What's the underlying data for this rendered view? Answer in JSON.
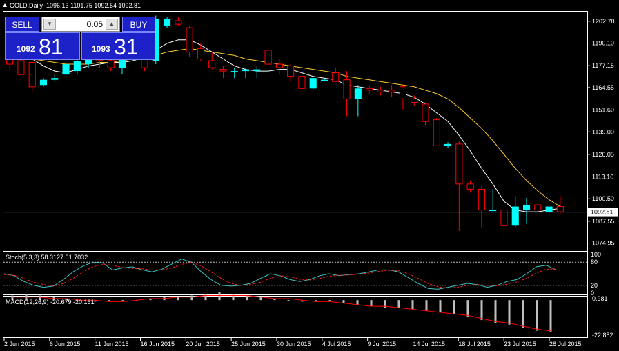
{
  "window": {
    "title": "GOLD,Daily",
    "ohlc": "1096.13 1101.75 1092.54 1092.81"
  },
  "trade_panel": {
    "sell_label": "SELL",
    "buy_label": "BUY",
    "lot_value": "0.05",
    "bid_small": "1092",
    "bid_big": "81",
    "ask_small": "1093",
    "ask_big": "31"
  },
  "indicators": {
    "stoch_label": "Stoch(5,3,3) 58.3127 61.7032",
    "macd_label": "MACD(12,26,9) -20.679 -20.161"
  },
  "colors": {
    "background": "#000000",
    "bull_candle": "#00ffff",
    "bear_candle": "#ff0000",
    "ma_fast": "#ffffff",
    "ma_slow": "#ffcc33",
    "bid_line": "#7f8fa6",
    "panel_blue": "#1c22c8",
    "stoch_main": "#40c0c0",
    "stoch_signal": "#ff2020",
    "macd_signal": "#ff0000",
    "macd_hist": "#c0c0c0"
  },
  "chart_data": {
    "type": "candlestick",
    "symbol": "GOLD",
    "timeframe": "Daily",
    "ylim": [
      1072,
      1207
    ],
    "price_ticks": [
      "1202.70",
      "1190.10",
      "1177.15",
      "1164.55",
      "1151.60",
      "1139.00",
      "1126.05",
      "1113.10",
      "1100.50",
      "1087.55",
      "1074.95"
    ],
    "current_price": "1092.81",
    "x_labels": [
      "2 Jun 2015",
      "6 Jun 2015",
      "11 Jun 2015",
      "16 Jun 2015",
      "20 Jun 2015",
      "25 Jun 2015",
      "30 Jun 2015",
      "4 Jul 2015",
      "9 Jul 2015",
      "14 Jul 2015",
      "18 Jul 2015",
      "23 Jul 2015",
      "28 Jul 2015"
    ],
    "candles": [
      [
        1185,
        1188,
        1175,
        1178
      ],
      [
        1180,
        1182,
        1170,
        1172
      ],
      [
        1179,
        1181,
        1162,
        1165
      ],
      [
        1166,
        1170,
        1165,
        1169
      ],
      [
        1169,
        1172,
        1168,
        1170
      ],
      [
        1172,
        1180,
        1170,
        1178
      ],
      [
        1174,
        1182,
        1172,
        1180
      ],
      [
        1178,
        1186,
        1176,
        1184
      ],
      [
        1182,
        1186,
        1176,
        1180
      ],
      [
        1180,
        1184,
        1174,
        1176
      ],
      [
        1176,
        1183,
        1172,
        1182
      ],
      [
        1182,
        1190,
        1180,
        1188
      ],
      [
        1186,
        1190,
        1174,
        1176
      ],
      [
        1180,
        1206,
        1178,
        1204
      ],
      [
        1200,
        1205,
        1199,
        1204
      ],
      [
        1203,
        1205,
        1200,
        1201
      ],
      [
        1199,
        1200,
        1182,
        1185
      ],
      [
        1187,
        1190,
        1180,
        1181
      ],
      [
        1180,
        1185,
        1175,
        1176
      ],
      [
        1175,
        1177,
        1170,
        1174
      ],
      [
        1174,
        1176,
        1170,
        1174
      ],
      [
        1174,
        1176,
        1170,
        1175
      ],
      [
        1174,
        1177,
        1170,
        1175
      ],
      [
        1186,
        1188,
        1178,
        1178
      ],
      [
        1178,
        1181,
        1172,
        1176
      ],
      [
        1177,
        1178,
        1168,
        1171
      ],
      [
        1171,
        1173,
        1158,
        1164
      ],
      [
        1164,
        1170,
        1163,
        1170
      ],
      [
        1169,
        1170,
        1168,
        1169
      ],
      [
        1173,
        1176,
        1168,
        1168
      ],
      [
        1169,
        1174,
        1148,
        1158
      ],
      [
        1158,
        1166,
        1148,
        1164
      ],
      [
        1164,
        1166,
        1161,
        1163
      ],
      [
        1163,
        1165,
        1160,
        1162
      ],
      [
        1163,
        1166,
        1159,
        1162
      ],
      [
        1165,
        1166,
        1152,
        1158
      ],
      [
        1158,
        1160,
        1154,
        1156
      ],
      [
        1155,
        1156,
        1143,
        1145
      ],
      [
        1146,
        1147,
        1131,
        1131
      ],
      [
        1131,
        1133,
        1130,
        1132
      ],
      [
        1132,
        1134,
        1082,
        1109
      ],
      [
        1109,
        1111,
        1104,
        1106
      ],
      [
        1106,
        1108,
        1084,
        1094
      ],
      [
        1094,
        1106,
        1094,
        1094
      ],
      [
        1094,
        1096,
        1077,
        1085
      ],
      [
        1085,
        1102,
        1084,
        1096
      ],
      [
        1094,
        1101,
        1086,
        1097
      ],
      [
        1097,
        1098,
        1092,
        1094
      ],
      [
        1093,
        1097,
        1091,
        1096
      ],
      [
        1096,
        1102,
        1092,
        1093
      ]
    ],
    "ma_fast": [
      1183,
      1183,
      1181,
      1177,
      1174,
      1173,
      1175,
      1177,
      1178,
      1179,
      1179,
      1180,
      1182,
      1186,
      1190,
      1192,
      1192,
      1189,
      1185,
      1181,
      1177,
      1175,
      1174,
      1174,
      1175,
      1175,
      1173,
      1171,
      1170,
      1169,
      1166,
      1165,
      1164,
      1163,
      1162,
      1161,
      1159,
      1155,
      1150,
      1145,
      1137,
      1128,
      1118,
      1109,
      1099,
      1094,
      1093,
      1093,
      1094,
      1095
    ],
    "ma_slow": [
      1182,
      1182,
      1181,
      1180,
      1179,
      1178,
      1178,
      1178,
      1179,
      1179,
      1180,
      1181,
      1182,
      1183,
      1185,
      1186,
      1187,
      1186,
      1185,
      1184,
      1183,
      1181,
      1180,
      1179,
      1178,
      1177,
      1176,
      1175,
      1174,
      1173,
      1171,
      1170,
      1169,
      1168,
      1167,
      1166,
      1165,
      1163,
      1161,
      1158,
      1153,
      1147,
      1141,
      1134,
      1126,
      1118,
      1111,
      1105,
      1100,
      1096
    ],
    "stoch": {
      "main": [
        50,
        45,
        30,
        20,
        15,
        18,
        35,
        55,
        70,
        80,
        78,
        60,
        65,
        68,
        60,
        55,
        62,
        75,
        88,
        80,
        55,
        35,
        20,
        18,
        20,
        25,
        38,
        50,
        45,
        35,
        30,
        35,
        45,
        50,
        45,
        48,
        50,
        55,
        60,
        60,
        55,
        40,
        25,
        12,
        10,
        15,
        20,
        25,
        22,
        15,
        20,
        30,
        35,
        50,
        68,
        72,
        60
      ],
      "signal": [
        48,
        46,
        38,
        28,
        22,
        18,
        25,
        38,
        55,
        68,
        75,
        72,
        66,
        64,
        63,
        60,
        60,
        65,
        74,
        80,
        70,
        55,
        38,
        25,
        20,
        22,
        28,
        38,
        45,
        42,
        36,
        34,
        38,
        44,
        46,
        47,
        49,
        52,
        56,
        59,
        58,
        50,
        38,
        25,
        16,
        13,
        15,
        20,
        22,
        20,
        19,
        23,
        29,
        38,
        52,
        62,
        62
      ]
    },
    "macd": {
      "hist": [
        3,
        4,
        3,
        2,
        1,
        0,
        -1,
        -1,
        -1,
        0,
        1,
        2,
        2,
        3,
        4,
        5,
        4,
        3,
        2,
        1,
        0,
        -1,
        -1,
        -1,
        -2,
        -3,
        -4,
        -5,
        -5,
        -6,
        -7,
        -8,
        -9,
        -11,
        -13,
        -15,
        -16,
        -18,
        -20,
        -21
      ],
      "signal": [
        2,
        2,
        2,
        1,
        1,
        0,
        0,
        -1,
        -1,
        0,
        1,
        1,
        2,
        2,
        3,
        3,
        3,
        3,
        2,
        1,
        1,
        0,
        -1,
        -1,
        -2,
        -3,
        -4,
        -4,
        -5,
        -6,
        -7,
        -8,
        -9,
        -10,
        -12,
        -14,
        -15,
        -17,
        -19,
        -20
      ]
    },
    "stoch_ticks": [
      "100",
      "80",
      "20",
      "0"
    ],
    "macd_ticks": [
      "0.981",
      "-22.852"
    ]
  }
}
